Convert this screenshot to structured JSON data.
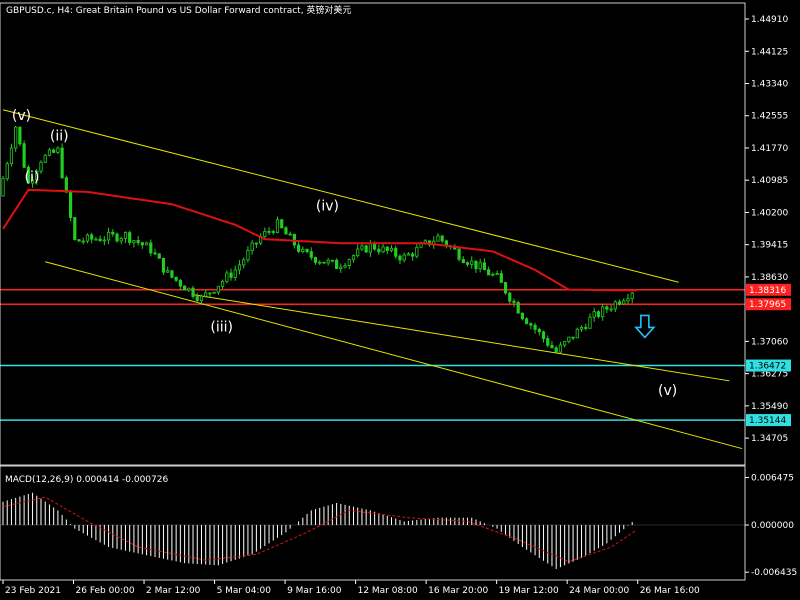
{
  "header": {
    "symbol_line": "GBPUSD.c, H4:  Great Britain Pound vs US Dollar Forward contract, 英镑对美元",
    "macd_line": "MACD(12,26,9) 0.000414 -0.000726"
  },
  "colors": {
    "background": "#000000",
    "candle": "#22cc22",
    "moving_average": "#e01010",
    "channel": "#e6e600",
    "resistance_line": "#ff2020",
    "support_line": "#30e0e0",
    "macd_histogram": "#ffffff",
    "macd_signal": "#e01010",
    "arrow": "#20c0ff",
    "axis": "#ffffff"
  },
  "chart_data": [
    {
      "type": "candlestick",
      "title": "",
      "y_ticks": [
        "1.44910",
        "1.44125",
        "1.43340",
        "1.42555",
        "1.41770",
        "1.40985",
        "1.40200",
        "1.39415",
        "1.38630",
        "1.37060",
        "1.36275",
        "1.35490",
        "1.34705"
      ],
      "ylim": [
        1.3405,
        1.453
      ],
      "x_ticks": [
        "23 Feb 2021",
        "26 Feb 00:00",
        "2 Mar 12:00",
        "5 Mar 04:00",
        "9 Mar 16:00",
        "12 Mar 08:00",
        "16 Mar 20:00",
        "19 Mar 12:00",
        "24 Mar 00:00",
        "26 Mar 16:00"
      ],
      "bars": 150,
      "price_path": [
        [
          0,
          1.406
        ],
        [
          4,
          1.423
        ],
        [
          7,
          1.409
        ],
        [
          10,
          1.415
        ],
        [
          14,
          1.417
        ],
        [
          18,
          1.395
        ],
        [
          30,
          1.3965
        ],
        [
          36,
          1.393
        ],
        [
          40,
          1.387
        ],
        [
          48,
          1.381
        ],
        [
          56,
          1.388
        ],
        [
          62,
          1.396
        ],
        [
          66,
          1.399
        ],
        [
          72,
          1.392
        ],
        [
          80,
          1.389
        ],
        [
          88,
          1.394
        ],
        [
          96,
          1.391
        ],
        [
          104,
          1.396
        ],
        [
          110,
          1.391
        ],
        [
          118,
          1.386
        ],
        [
          124,
          1.377
        ],
        [
          132,
          1.368
        ],
        [
          140,
          1.376
        ],
        [
          146,
          1.38
        ],
        [
          150,
          1.383
        ]
      ],
      "moving_average_path": [
        [
          0,
          1.398
        ],
        [
          6,
          1.4075
        ],
        [
          20,
          1.407
        ],
        [
          40,
          1.404
        ],
        [
          55,
          1.399
        ],
        [
          62,
          1.3955
        ],
        [
          80,
          1.3945
        ],
        [
          100,
          1.3945
        ],
        [
          116,
          1.3925
        ],
        [
          126,
          1.388
        ],
        [
          134,
          1.3832
        ],
        [
          150,
          1.383
        ]
      ],
      "horizontal_levels": [
        {
          "label": "1.38316",
          "value": 1.38316,
          "kind": "resistance"
        },
        {
          "label": "1.37965",
          "value": 1.37965,
          "kind": "resistance"
        },
        {
          "label": "1.36472",
          "value": 1.36472,
          "kind": "support"
        },
        {
          "label": "1.35144",
          "value": 1.35144,
          "kind": "support"
        }
      ],
      "channel_lines": [
        {
          "from": [
            0,
            1.427
          ],
          "to": [
            160,
            1.385
          ]
        },
        {
          "from": [
            10,
            1.39
          ],
          "to": [
            175,
            1.3445
          ]
        },
        {
          "from": [
            45,
            1.382
          ],
          "to": [
            172,
            1.361
          ]
        }
      ],
      "wave_labels": [
        {
          "text": "(v)",
          "bar": 4,
          "price": 1.4245
        },
        {
          "text": "(ii)",
          "bar": 13,
          "price": 1.4195
        },
        {
          "text": "(i)",
          "bar": 7,
          "price": 1.4095
        },
        {
          "text": "(iv)",
          "bar": 76,
          "price": 1.4025
        },
        {
          "text": "(iii)",
          "bar": 51,
          "price": 1.373
        },
        {
          "text": "(v)",
          "bar": 157,
          "price": 1.3575
        }
      ],
      "arrow": {
        "bar": 152,
        "price": 1.374,
        "direction": "down"
      }
    },
    {
      "type": "histogram",
      "title": "",
      "y_ticks": [
        "0.006475",
        "0.000000",
        "-0.006435"
      ],
      "ylim": [
        -0.0075,
        0.0075
      ],
      "macd": 0.000414,
      "signal": -0.000726,
      "histogram_path": [
        [
          0,
          0.003
        ],
        [
          8,
          0.0044
        ],
        [
          14,
          0.002
        ],
        [
          18,
          -0.0005
        ],
        [
          26,
          -0.003
        ],
        [
          34,
          -0.004
        ],
        [
          44,
          -0.0052
        ],
        [
          52,
          -0.0055
        ],
        [
          60,
          -0.004
        ],
        [
          68,
          -0.001
        ],
        [
          74,
          0.002
        ],
        [
          80,
          0.003
        ],
        [
          88,
          0.002
        ],
        [
          96,
          0.0005
        ],
        [
          104,
          0.001
        ],
        [
          112,
          0.001
        ],
        [
          118,
          -0.0005
        ],
        [
          124,
          -0.003
        ],
        [
          132,
          -0.006
        ],
        [
          138,
          -0.0045
        ],
        [
          144,
          -0.0025
        ],
        [
          150,
          0.0004
        ]
      ],
      "signal_path": [
        [
          0,
          0.0025
        ],
        [
          10,
          0.0038
        ],
        [
          20,
          0.0005
        ],
        [
          32,
          -0.003
        ],
        [
          48,
          -0.0048
        ],
        [
          60,
          -0.004
        ],
        [
          72,
          -0.001
        ],
        [
          82,
          0.002
        ],
        [
          96,
          0.001
        ],
        [
          110,
          0.0005
        ],
        [
          122,
          -0.002
        ],
        [
          134,
          -0.005
        ],
        [
          144,
          -0.003
        ],
        [
          150,
          -0.0007
        ]
      ]
    }
  ]
}
